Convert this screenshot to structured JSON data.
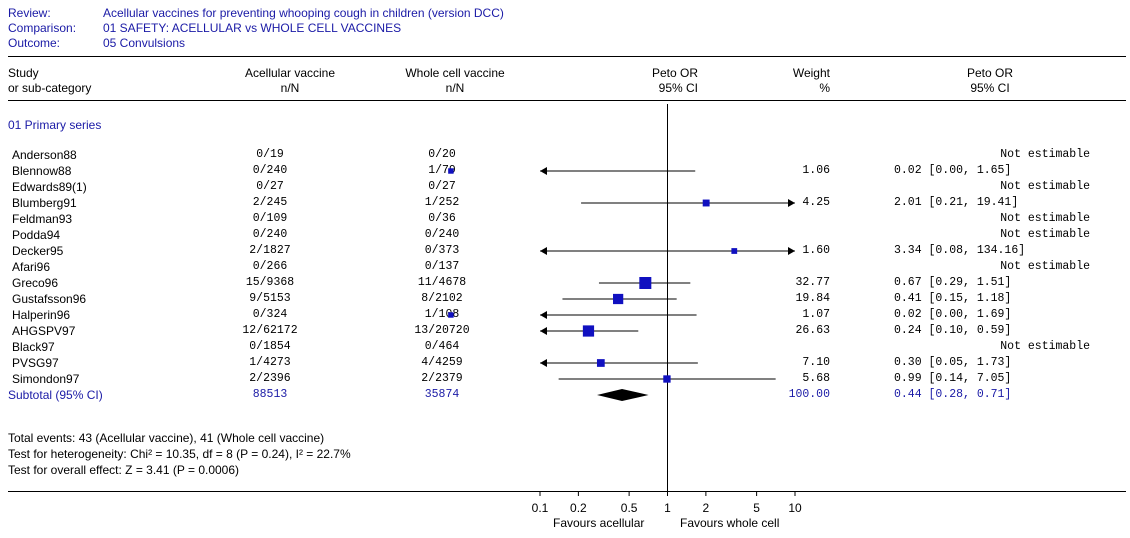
{
  "header": {
    "review_label": "Review:",
    "review_value": "Acellular vaccines for preventing whooping cough in children (version DCC)",
    "comparison_label": "Comparison:",
    "comparison_value": "01 SAFETY: ACELLULAR vs WHOLE CELL VACCINES",
    "outcome_label": "Outcome:",
    "outcome_value": "05 Convulsions"
  },
  "columns": {
    "study": [
      "Study",
      "or sub-category"
    ],
    "acellular": [
      "Acellular vaccine",
      "n/N"
    ],
    "wholecell": [
      "Whole cell vaccine",
      "n/N"
    ],
    "forest": [
      "Peto OR",
      "95% CI"
    ],
    "weight": [
      "Weight",
      "%"
    ],
    "estimate": [
      "Peto OR",
      "95% CI"
    ]
  },
  "subgroup": "01 Primary series",
  "chart_data": {
    "type": "forest",
    "scale": "log",
    "xlim": [
      0.1,
      10
    ],
    "ticks": [
      "0.1",
      "0.2",
      "0.5",
      "1",
      "2",
      "5",
      "10"
    ],
    "tick_values": [
      0.1,
      0.2,
      0.5,
      1,
      2,
      5,
      10
    ],
    "xlabel_left": "Favours acellular",
    "xlabel_right": "Favours whole cell",
    "studies": [
      {
        "study": "Anderson88",
        "acellular": "0/19",
        "wholecell": "0/20",
        "weight": "",
        "ci_text": "Not estimable",
        "or": null,
        "lo": null,
        "hi": null
      },
      {
        "study": "Blennow88",
        "acellular": "0/240",
        "wholecell": "1/79",
        "weight": "1.06",
        "ci_text": "0.02 [0.00, 1.65]",
        "or": 0.02,
        "lo": 0.0,
        "hi": 1.65
      },
      {
        "study": "Edwards89(1)",
        "acellular": "0/27",
        "wholecell": "0/27",
        "weight": "",
        "ci_text": "Not estimable",
        "or": null,
        "lo": null,
        "hi": null
      },
      {
        "study": "Blumberg91",
        "acellular": "2/245",
        "wholecell": "1/252",
        "weight": "4.25",
        "ci_text": "2.01 [0.21, 19.41]",
        "or": 2.01,
        "lo": 0.21,
        "hi": 19.41
      },
      {
        "study": "Feldman93",
        "acellular": "0/109",
        "wholecell": "0/36",
        "weight": "",
        "ci_text": "Not estimable",
        "or": null,
        "lo": null,
        "hi": null
      },
      {
        "study": "Podda94",
        "acellular": "0/240",
        "wholecell": "0/240",
        "weight": "",
        "ci_text": "Not estimable",
        "or": null,
        "lo": null,
        "hi": null
      },
      {
        "study": "Decker95",
        "acellular": "2/1827",
        "wholecell": "0/373",
        "weight": "1.60",
        "ci_text": "3.34 [0.08, 134.16]",
        "or": 3.34,
        "lo": 0.08,
        "hi": 134.16
      },
      {
        "study": "Afari96",
        "acellular": "0/266",
        "wholecell": "0/137",
        "weight": "",
        "ci_text": "Not estimable",
        "or": null,
        "lo": null,
        "hi": null
      },
      {
        "study": "Greco96",
        "acellular": "15/9368",
        "wholecell": "11/4678",
        "weight": "32.77",
        "ci_text": "0.67 [0.29, 1.51]",
        "or": 0.67,
        "lo": 0.29,
        "hi": 1.51
      },
      {
        "study": "Gustafsson96",
        "acellular": "9/5153",
        "wholecell": "8/2102",
        "weight": "19.84",
        "ci_text": "0.41 [0.15, 1.18]",
        "or": 0.41,
        "lo": 0.15,
        "hi": 1.18
      },
      {
        "study": "Halperin96",
        "acellular": "0/324",
        "wholecell": "1/108",
        "weight": "1.07",
        "ci_text": "0.02 [0.00, 1.69]",
        "or": 0.02,
        "lo": 0.0,
        "hi": 1.69
      },
      {
        "study": "AHGSPV97",
        "acellular": "12/62172",
        "wholecell": "13/20720",
        "weight": "26.63",
        "ci_text": "0.24 [0.10, 0.59]",
        "or": 0.24,
        "lo": 0.1,
        "hi": 0.59
      },
      {
        "study": "Black97",
        "acellular": "0/1854",
        "wholecell": "0/464",
        "weight": "",
        "ci_text": "Not estimable",
        "or": null,
        "lo": null,
        "hi": null
      },
      {
        "study": "PVSG97",
        "acellular": "1/4273",
        "wholecell": "4/4259",
        "weight": "7.10",
        "ci_text": "0.30 [0.05, 1.73]",
        "or": 0.3,
        "lo": 0.05,
        "hi": 1.73
      },
      {
        "study": "Simondon97",
        "acellular": "2/2396",
        "wholecell": "2/2379",
        "weight": "5.68",
        "ci_text": "0.99 [0.14, 7.05]",
        "or": 0.99,
        "lo": 0.14,
        "hi": 7.05
      }
    ],
    "subtotal": {
      "study": "Subtotal (95% CI)",
      "acellular": "88513",
      "wholecell": "35874",
      "weight": "100.00",
      "ci_text": "0.44 [0.28, 0.71]",
      "or": 0.44,
      "lo": 0.28,
      "hi": 0.71
    }
  },
  "footer": {
    "total_events": "Total events: 43 (Acellular vaccine), 41 (Whole cell vaccine)",
    "heterogeneity": "Test for heterogeneity: Chi² = 10.35, df = 8 (P = 0.24), I² = 22.7%",
    "overall_effect": "Test for overall effect: Z = 3.41 (P = 0.0006)"
  },
  "colors": {
    "accent": "#1a1aa6",
    "marker": "#1010c0"
  }
}
